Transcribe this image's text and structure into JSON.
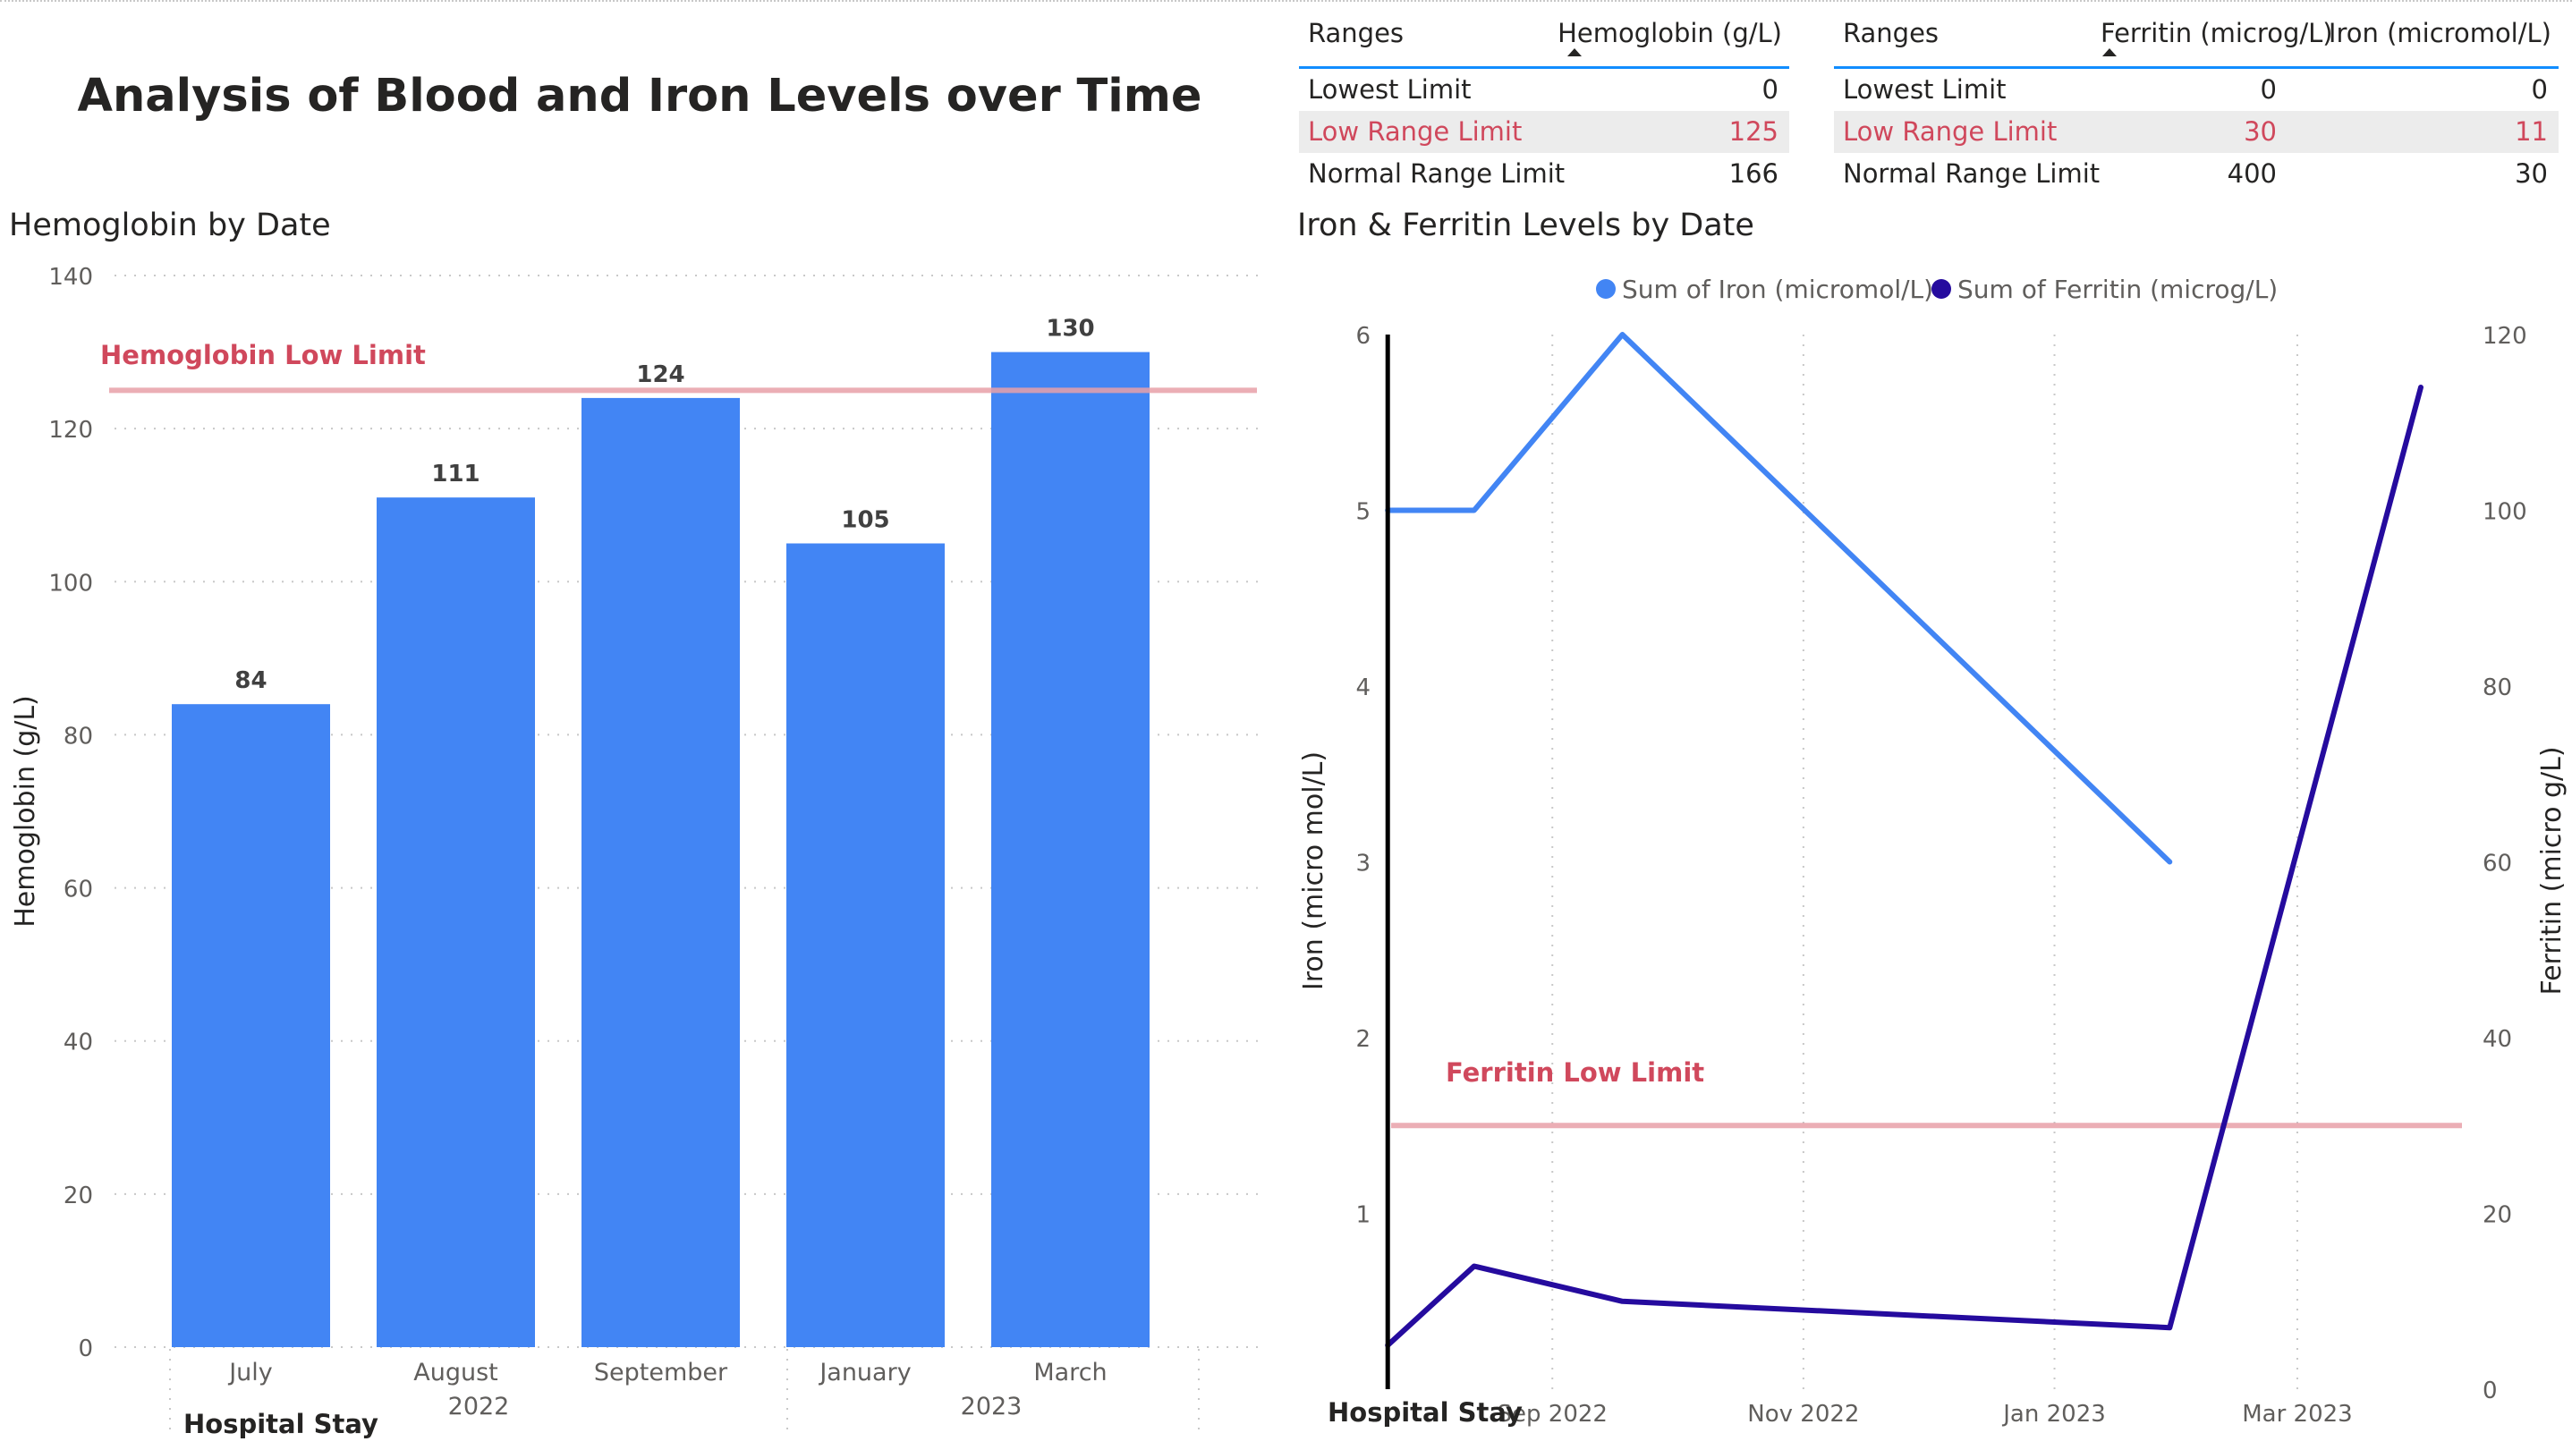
{
  "page": {
    "title": "Analysis of Blood and Iron Levels over Time"
  },
  "hemo_table": {
    "headers": [
      "Ranges",
      "Hemoglobin (g/L)"
    ],
    "rows": [
      {
        "label": "Lowest Limit",
        "value": "0"
      },
      {
        "label": "Low Range Limit",
        "value": "125"
      },
      {
        "label": "Normal Range Limit",
        "value": "166"
      }
    ]
  },
  "ferritin_table": {
    "headers": [
      "Ranges",
      "Ferritin (microg/L)",
      "Iron (micromol/L)"
    ],
    "rows": [
      {
        "label": "Lowest Limit",
        "ferritin": "0",
        "iron": "0"
      },
      {
        "label": "Low Range Limit",
        "ferritin": "30",
        "iron": "11"
      },
      {
        "label": "Normal Range Limit",
        "ferritin": "400",
        "iron": "30"
      }
    ]
  },
  "colors": {
    "bar": "#4285f4",
    "iron": "#4285f4",
    "ferritin": "#250b9e",
    "limit_line": "#e8a0a8",
    "limit_text": "#d0485c",
    "table_accent": "#118dff"
  },
  "chart_data": [
    {
      "type": "bar",
      "title": "Hemoglobin by Date",
      "categories": [
        "July",
        "August",
        "September",
        "January",
        "March"
      ],
      "year_labels": [
        "2022",
        "2023"
      ],
      "values": [
        84,
        111,
        124,
        105,
        130
      ],
      "ylabel": "Hemoglobin (g/L)",
      "ylim": [
        0,
        140
      ],
      "yticks": [
        0,
        20,
        40,
        60,
        80,
        100,
        120,
        140
      ],
      "reference_line": {
        "label": "Hemoglobin Low Limit",
        "value": 125
      },
      "x_marker_label": "Hospital Stay",
      "grid": true
    },
    {
      "type": "line",
      "title": "Iron & Ferritin Levels by Date",
      "legend_position": "top",
      "xticks": [
        "Sep 2022",
        "Nov 2022",
        "Jan 2023",
        "Mar 2023"
      ],
      "series": [
        {
          "name": "Sum of Iron (micromol/L)",
          "axis": "left",
          "x": [
            "2022-07-23",
            "2022-08-13",
            "2022-09-18",
            "2023-01-29"
          ],
          "y": [
            5,
            5,
            6,
            3
          ]
        },
        {
          "name": "Sum of Ferritin (microg/L)",
          "axis": "right",
          "x": [
            "2022-07-23",
            "2022-08-13",
            "2022-09-18",
            "2023-01-29",
            "2023-03-31"
          ],
          "y": [
            5,
            14,
            10,
            7,
            114
          ]
        }
      ],
      "ylabel_left": "Iron (micro mol/L)",
      "ylim_left": [
        0,
        6
      ],
      "yticks_left": [
        1,
        2,
        3,
        4,
        5,
        6
      ],
      "ylabel_right": "Ferritin (micro g/L)",
      "ylim_right": [
        0,
        120
      ],
      "yticks_right": [
        0,
        20,
        40,
        60,
        80,
        100,
        120
      ],
      "reference_line": {
        "label": "Ferritin Low Limit",
        "value": 30,
        "axis": "right"
      },
      "marker_line": {
        "label": "Hospital Stay",
        "x": "2022-07-23"
      },
      "grid": true
    }
  ]
}
